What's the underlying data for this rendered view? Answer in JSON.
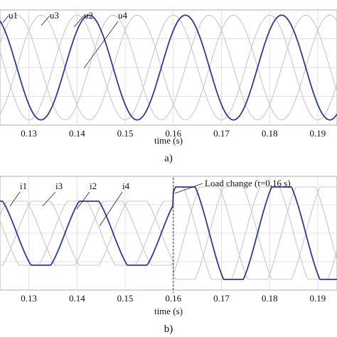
{
  "chart_data": [
    {
      "type": "line",
      "panel_label": "a)",
      "xlabel": "time (s)",
      "xlim": [
        0.124,
        0.194
      ],
      "xticks": [
        "0.13",
        "0.14",
        "0.15",
        "0.16",
        "0.17",
        "0.18",
        "0.19"
      ],
      "ylim": [
        -1.1,
        1.1
      ],
      "grid": true,
      "series": [
        {
          "name": "u1",
          "color": "#c8c8c8",
          "period": 0.02,
          "phase_deg": 90,
          "amplitude": 1.0
        },
        {
          "name": "u2",
          "color": "#c8c8c8",
          "period": 0.02,
          "phase_deg": 225,
          "amplitude": 1.0
        },
        {
          "name": "u3",
          "color": "#c8c8c8",
          "period": 0.02,
          "phase_deg": 315,
          "amplitude": 1.0
        },
        {
          "name": "u4",
          "color": "#2d3a9c",
          "period": 0.02,
          "phase_deg": 45,
          "amplitude": 1.0
        }
      ],
      "annotations": [
        {
          "text": "u1",
          "target_series": "u1"
        },
        {
          "text": "u3",
          "target_series": "u3"
        },
        {
          "text": "u2",
          "target_series": "u2"
        },
        {
          "text": "u4",
          "target_series": "u4"
        }
      ]
    },
    {
      "type": "line",
      "panel_label": "b)",
      "xlabel": "time (s)",
      "xlim": [
        0.124,
        0.194
      ],
      "xticks": [
        "0.13",
        "0.14",
        "0.15",
        "0.16",
        "0.17",
        "0.18",
        "0.19"
      ],
      "ylim": [
        -1.6,
        1.6
      ],
      "grid": true,
      "event": {
        "x": 0.16,
        "text": "Load change (t=0,16 s)"
      },
      "series": [
        {
          "name": "i1",
          "color": "#c8c8c8",
          "period": 0.02,
          "phase_deg": 90,
          "amp_before": 0.9,
          "amp_after": 1.3
        },
        {
          "name": "i2",
          "color": "#c8c8c8",
          "period": 0.02,
          "phase_deg": 225,
          "amp_before": 0.9,
          "amp_after": 1.3
        },
        {
          "name": "i3",
          "color": "#c8c8c8",
          "period": 0.02,
          "phase_deg": 315,
          "amp_before": 0.9,
          "amp_after": 1.3
        },
        {
          "name": "i4",
          "color": "#2d3a9c",
          "period": 0.02,
          "phase_deg": 45,
          "amp_before": 0.9,
          "amp_after": 1.3
        }
      ],
      "annotations": [
        {
          "text": "i1",
          "target_series": "i1"
        },
        {
          "text": "i3",
          "target_series": "i3"
        },
        {
          "text": "i2",
          "target_series": "i2"
        },
        {
          "text": "i4",
          "target_series": "i4"
        }
      ]
    }
  ]
}
